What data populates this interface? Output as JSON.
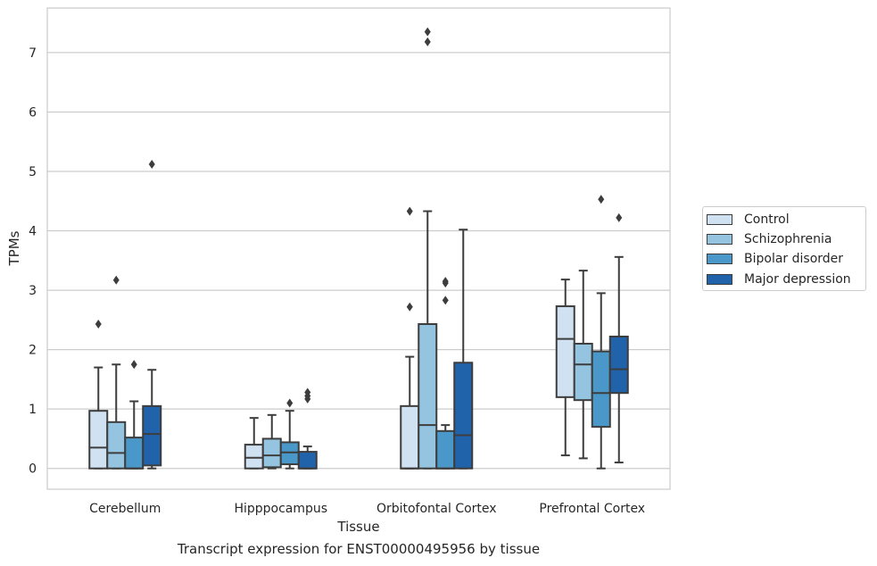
{
  "chart_data": {
    "type": "box",
    "title": "",
    "caption": "Transcript expression for ENST00000495956 by tissue",
    "xlabel": "Tissue",
    "ylabel": "TPMs",
    "ylim": [
      -0.35,
      7.75
    ],
    "yticks": [
      0,
      1,
      2,
      3,
      4,
      5,
      6,
      7
    ],
    "grid": "horizontal",
    "legend_position": "right",
    "categories": [
      "Cerebellum",
      "Hipppocampus",
      "Orbitofontal Cortex",
      "Prefrontal Cortex"
    ],
    "series": [
      {
        "name": "Control",
        "color": "#d0e1f2",
        "boxes": [
          {
            "whisker_low": 0,
            "q1": 0,
            "median": 0.35,
            "q3": 0.97,
            "whisker_high": 1.7,
            "outliers": [
              2.43
            ]
          },
          {
            "whisker_low": 0,
            "q1": 0,
            "median": 0.18,
            "q3": 0.4,
            "whisker_high": 0.85,
            "outliers": []
          },
          {
            "whisker_low": 0,
            "q1": 0,
            "median": 0,
            "q3": 1.05,
            "whisker_high": 1.88,
            "outliers": [
              2.72,
              4.33
            ]
          },
          {
            "whisker_low": 0.22,
            "q1": 1.2,
            "median": 2.18,
            "q3": 2.73,
            "whisker_high": 3.18,
            "outliers": []
          }
        ]
      },
      {
        "name": "Schizophrenia",
        "color": "#94c4df",
        "boxes": [
          {
            "whisker_low": 0,
            "q1": 0,
            "median": 0.26,
            "q3": 0.78,
            "whisker_high": 1.75,
            "outliers": [
              3.17
            ]
          },
          {
            "whisker_low": 0,
            "q1": 0.02,
            "median": 0.22,
            "q3": 0.5,
            "whisker_high": 0.9,
            "outliers": []
          },
          {
            "whisker_low": 0,
            "q1": 0,
            "median": 0.73,
            "q3": 2.43,
            "whisker_high": 4.33,
            "outliers": [
              7.18,
              7.35
            ]
          },
          {
            "whisker_low": 0.17,
            "q1": 1.15,
            "median": 1.75,
            "q3": 2.1,
            "whisker_high": 3.33,
            "outliers": []
          }
        ]
      },
      {
        "name": "Bipolar disorder",
        "color": "#4a98c9",
        "boxes": [
          {
            "whisker_low": 0,
            "q1": 0,
            "median": 0,
            "q3": 0.52,
            "whisker_high": 1.13,
            "outliers": [
              1.75
            ]
          },
          {
            "whisker_low": 0,
            "q1": 0.07,
            "median": 0.27,
            "q3": 0.44,
            "whisker_high": 0.97,
            "outliers": [
              1.1
            ]
          },
          {
            "whisker_low": 0,
            "q1": 0,
            "median": 0,
            "q3": 0.63,
            "whisker_high": 0.73,
            "outliers": [
              2.83,
              3.12,
              3.15
            ]
          },
          {
            "whisker_low": 0,
            "q1": 0.7,
            "median": 1.27,
            "q3": 1.97,
            "whisker_high": 2.95,
            "outliers": [
              4.53
            ]
          }
        ]
      },
      {
        "name": "Major depression",
        "color": "#2163aa",
        "boxes": [
          {
            "whisker_low": 0,
            "q1": 0.05,
            "median": 0.58,
            "q3": 1.05,
            "whisker_high": 1.66,
            "outliers": [
              5.12
            ]
          },
          {
            "whisker_low": 0,
            "q1": 0,
            "median": 0,
            "q3": 0.28,
            "whisker_high": 0.37,
            "outliers": [
              1.17,
              1.22,
              1.28
            ]
          },
          {
            "whisker_low": 0,
            "q1": 0,
            "median": 0.56,
            "q3": 1.78,
            "whisker_high": 4.02,
            "outliers": []
          },
          {
            "whisker_low": 0.1,
            "q1": 1.27,
            "median": 1.67,
            "q3": 2.22,
            "whisker_high": 3.56,
            "outliers": [
              4.22
            ]
          }
        ]
      }
    ]
  }
}
